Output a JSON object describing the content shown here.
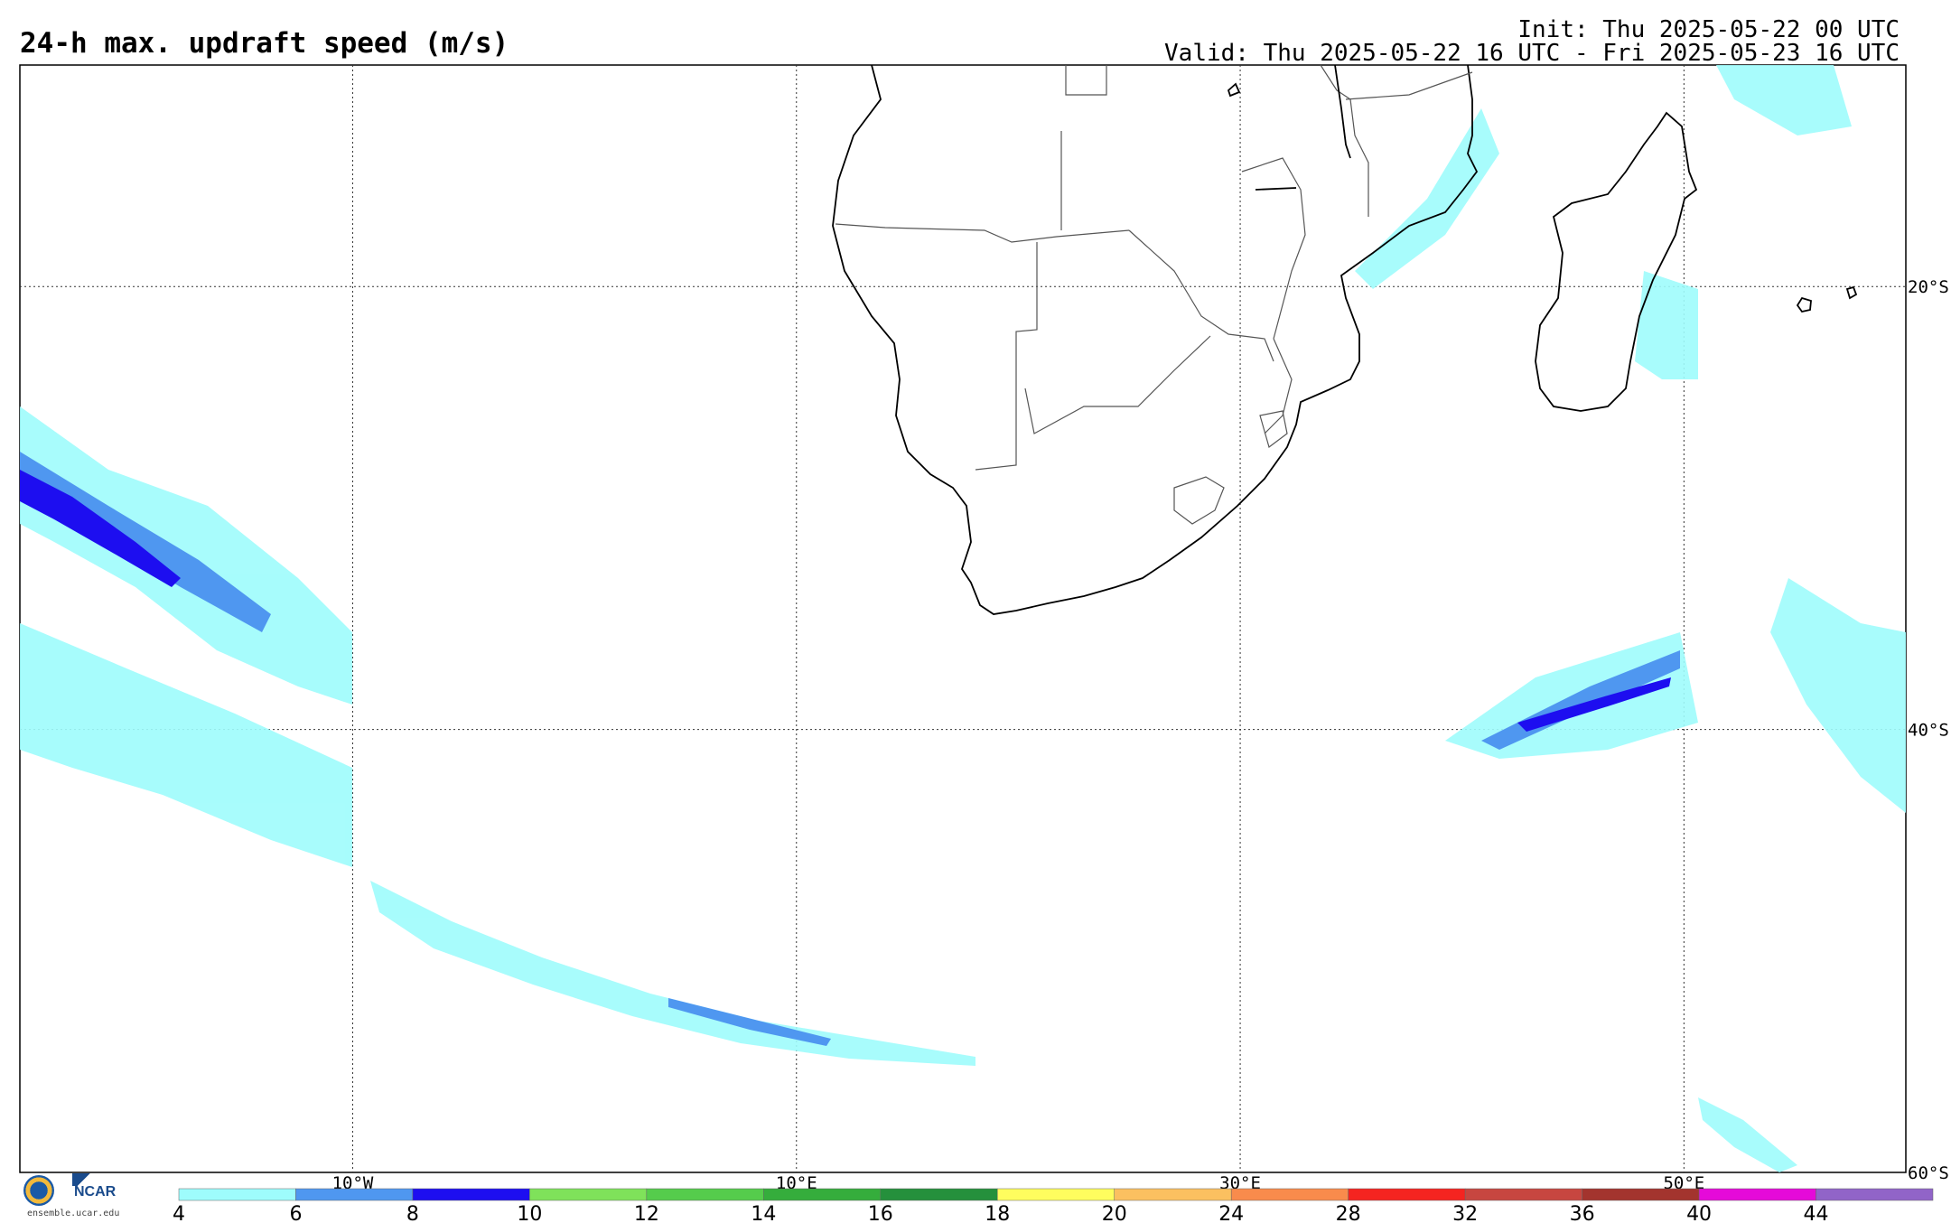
{
  "header": {
    "title": "24-h max. updraft speed (m/s)",
    "init": "Init: Thu 2025-05-22 00 UTC",
    "valid": "Valid: Thu 2025-05-22 16 UTC - Fri 2025-05-23 16 UTC"
  },
  "map": {
    "lon_range": [
      -25,
      60
    ],
    "lat_range": [
      -60,
      -10
    ],
    "lon_gridlines": [
      {
        "value": -10,
        "label": "10°W"
      },
      {
        "value": 10,
        "label": "10°E"
      },
      {
        "value": 30,
        "label": "30°E"
      },
      {
        "value": 50,
        "label": "50°E"
      }
    ],
    "lat_gridlines": [
      {
        "value": -20,
        "label": "20°S"
      },
      {
        "value": -40,
        "label": "40°S"
      },
      {
        "value": -60,
        "label": "60°S"
      }
    ],
    "gridline_style": "dotted",
    "coastline_color": "#000000",
    "border_color": "#555555"
  },
  "colorbar": {
    "ticks": [
      "4",
      "6",
      "8",
      "10",
      "12",
      "14",
      "16",
      "18",
      "20",
      "24",
      "28",
      "32",
      "36",
      "40",
      "44"
    ],
    "colors": [
      "#9efcfc",
      "#4f97f0",
      "#1d0ef0",
      "#7fe25a",
      "#55cc4c",
      "#35ad3c",
      "#25903c",
      "#fffd5e",
      "#fbc060",
      "#f98b4c",
      "#f52420",
      "#c74640",
      "#a3342e",
      "#e50ad9",
      "#9164c8"
    ]
  },
  "logos": {
    "nsf_icon": "nsf-logo",
    "ncar_text": "NCAR",
    "credit": "ensemble.ucar.edu"
  }
}
